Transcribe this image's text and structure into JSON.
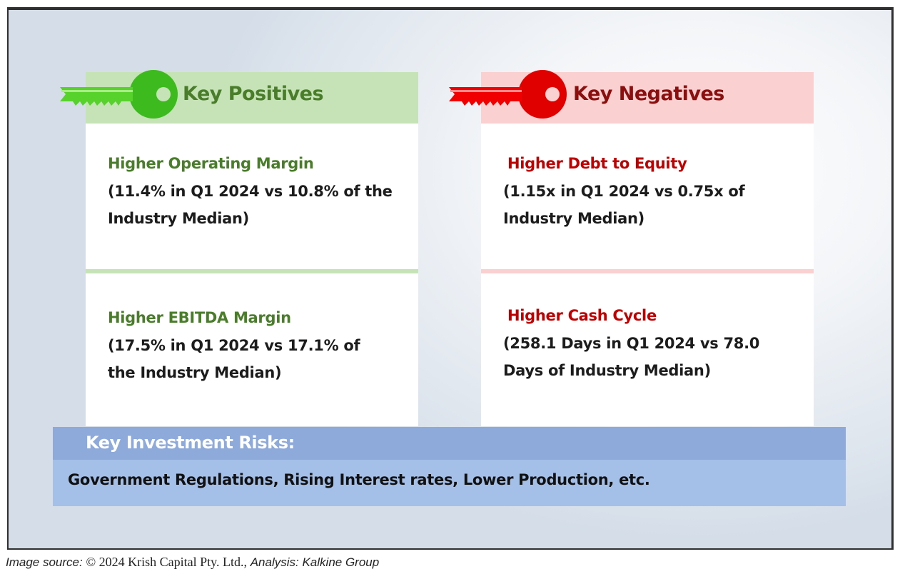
{
  "positives": {
    "title": "Key Positives",
    "color": "#4a7d2a",
    "key_icon": "green-key-icon",
    "items": [
      {
        "title": "Higher Operating Margin",
        "line1": "(11.4% in Q1 2024 vs 10.8% of the",
        "line2": "Industry Median)"
      },
      {
        "title": "Higher EBITDA Margin",
        "line1": "(17.5% in Q1 2024 vs 17.1% of",
        "line2": "the Industry Median)"
      }
    ]
  },
  "negatives": {
    "title": "Key Negatives",
    "color": "#c00000",
    "key_icon": "red-key-icon",
    "items": [
      {
        "title": "Higher Debt to Equity",
        "line1": "(1.15x in Q1 2024 vs 0.75x of",
        "line2": "Industry Median)"
      },
      {
        "title": "Higher Cash Cycle",
        "line1": "(258.1 Days in Q1 2024 vs 78.0",
        "line2": "Days of Industry Median)"
      }
    ]
  },
  "risks": {
    "title": "Key Investment Risks:",
    "text": "Government Regulations, Rising Interest rates, Lower Production, etc."
  },
  "caption": {
    "label": "Image source:",
    "source": "© 2024 Krish Capital Pty. Ltd.,",
    "analysis": "Analysis: Kalkine Group"
  }
}
